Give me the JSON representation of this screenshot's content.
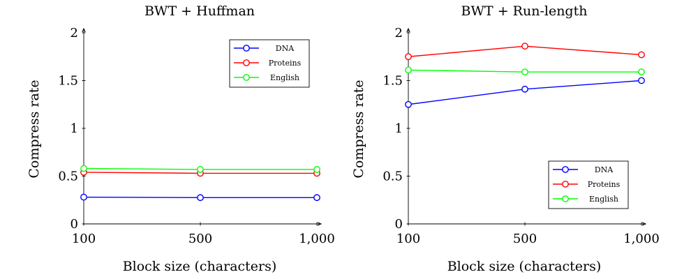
{
  "colors": {
    "DNA": "#0000ff",
    "Proteins": "#ff0000",
    "English": "#00ff00",
    "axis": "#000000"
  },
  "chart_data": [
    {
      "type": "line",
      "title": "BWT + Huffman",
      "xlabel": "Block size (characters)",
      "ylabel": "Compress rate",
      "x": [
        100,
        500,
        1000
      ],
      "xtick_labels": [
        "100",
        "500",
        "1,000"
      ],
      "yticks": [
        0,
        0.5,
        1,
        1.5,
        2
      ],
      "ytick_labels": [
        "0",
        "0.5",
        "1",
        "1.5",
        "2"
      ],
      "ylim": [
        0,
        2
      ],
      "legend_position": "top-right",
      "series": [
        {
          "name": "DNA",
          "values": [
            0.28,
            0.275,
            0.275
          ]
        },
        {
          "name": "Proteins",
          "values": [
            0.54,
            0.53,
            0.53
          ]
        },
        {
          "name": "English",
          "values": [
            0.58,
            0.57,
            0.57
          ]
        }
      ]
    },
    {
      "type": "line",
      "title": "BWT + Run-length",
      "xlabel": "Block size (characters)",
      "ylabel": "Compress rate",
      "x": [
        100,
        500,
        1000
      ],
      "xtick_labels": [
        "100",
        "500",
        "1,000"
      ],
      "yticks": [
        0,
        0.5,
        1,
        1.5,
        2
      ],
      "ytick_labels": [
        "0",
        "0.5",
        "1",
        "1.5",
        "2"
      ],
      "ylim": [
        0,
        2
      ],
      "legend_position": "bottom-right",
      "series": [
        {
          "name": "DNA",
          "values": [
            1.25,
            1.41,
            1.5
          ]
        },
        {
          "name": "Proteins",
          "values": [
            1.75,
            1.86,
            1.77
          ]
        },
        {
          "name": "English",
          "values": [
            1.61,
            1.59,
            1.59
          ]
        }
      ]
    }
  ]
}
